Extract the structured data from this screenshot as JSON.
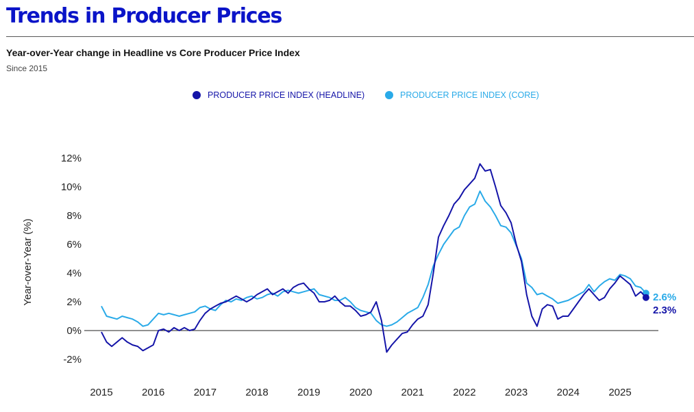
{
  "page": {
    "title": "Trends in Producer Prices",
    "subtitle": "Year-over-Year change in Headline vs Core Producer Price Index",
    "note": "Since 2015"
  },
  "colors": {
    "title": "#0a14c8",
    "headline": "#1414a8",
    "core": "#29aae8"
  },
  "chart_data": {
    "type": "line",
    "ylabel": "Year-over-Year (%)",
    "ylim": [
      -2,
      12
    ],
    "yticks": [
      {
        "v": -2,
        "label": "-2%"
      },
      {
        "v": 0,
        "label": "0%"
      },
      {
        "v": 2,
        "label": "2%"
      },
      {
        "v": 4,
        "label": "4%"
      },
      {
        "v": 6,
        "label": "6%"
      },
      {
        "v": 8,
        "label": "8%"
      },
      {
        "v": 10,
        "label": "10%"
      },
      {
        "v": 12,
        "label": "12%"
      }
    ],
    "xlim": [
      2015.0,
      2025.8
    ],
    "xticks": [
      {
        "v": 2015,
        "label": "2015"
      },
      {
        "v": 2016,
        "label": "2016"
      },
      {
        "v": 2017,
        "label": "2017"
      },
      {
        "v": 2018,
        "label": "2018"
      },
      {
        "v": 2019,
        "label": "2019"
      },
      {
        "v": 2020,
        "label": "2020"
      },
      {
        "v": 2021,
        "label": "2021"
      },
      {
        "v": 2022,
        "label": "2022"
      },
      {
        "v": 2023,
        "label": "2023"
      },
      {
        "v": 2024,
        "label": "2024"
      },
      {
        "v": 2025,
        "label": "2025"
      }
    ],
    "series": [
      {
        "name": "PRODUCER PRICE INDEX (HEADLINE)",
        "color": "#1414a8",
        "end_label": "2.3%",
        "values": [
          [
            2015.0,
            -0.1
          ],
          [
            2015.1,
            -0.8
          ],
          [
            2015.2,
            -1.1
          ],
          [
            2015.3,
            -0.8
          ],
          [
            2015.4,
            -0.5
          ],
          [
            2015.5,
            -0.8
          ],
          [
            2015.6,
            -1.0
          ],
          [
            2015.7,
            -1.1
          ],
          [
            2015.8,
            -1.4
          ],
          [
            2015.9,
            -1.2
          ],
          [
            2016.0,
            -1.0
          ],
          [
            2016.1,
            0.0
          ],
          [
            2016.2,
            0.1
          ],
          [
            2016.3,
            -0.1
          ],
          [
            2016.4,
            0.2
          ],
          [
            2016.5,
            0.0
          ],
          [
            2016.6,
            0.2
          ],
          [
            2016.7,
            0.0
          ],
          [
            2016.8,
            0.1
          ],
          [
            2016.9,
            0.7
          ],
          [
            2017.0,
            1.2
          ],
          [
            2017.1,
            1.5
          ],
          [
            2017.2,
            1.7
          ],
          [
            2017.3,
            1.9
          ],
          [
            2017.4,
            2.0
          ],
          [
            2017.5,
            2.2
          ],
          [
            2017.6,
            2.4
          ],
          [
            2017.7,
            2.2
          ],
          [
            2017.8,
            2.0
          ],
          [
            2017.9,
            2.2
          ],
          [
            2018.0,
            2.5
          ],
          [
            2018.1,
            2.7
          ],
          [
            2018.2,
            2.9
          ],
          [
            2018.3,
            2.5
          ],
          [
            2018.4,
            2.7
          ],
          [
            2018.5,
            2.9
          ],
          [
            2018.6,
            2.6
          ],
          [
            2018.7,
            3.0
          ],
          [
            2018.8,
            3.2
          ],
          [
            2018.9,
            3.3
          ],
          [
            2019.0,
            2.9
          ],
          [
            2019.1,
            2.6
          ],
          [
            2019.2,
            2.0
          ],
          [
            2019.3,
            2.0
          ],
          [
            2019.4,
            2.1
          ],
          [
            2019.5,
            2.4
          ],
          [
            2019.6,
            2.0
          ],
          [
            2019.7,
            1.7
          ],
          [
            2019.8,
            1.7
          ],
          [
            2019.9,
            1.4
          ],
          [
            2020.0,
            1.0
          ],
          [
            2020.1,
            1.1
          ],
          [
            2020.2,
            1.3
          ],
          [
            2020.3,
            2.0
          ],
          [
            2020.4,
            0.7
          ],
          [
            2020.5,
            -1.5
          ],
          [
            2020.6,
            -1.0
          ],
          [
            2020.7,
            -0.6
          ],
          [
            2020.8,
            -0.2
          ],
          [
            2020.9,
            -0.1
          ],
          [
            2021.0,
            0.4
          ],
          [
            2021.1,
            0.8
          ],
          [
            2021.2,
            1.0
          ],
          [
            2021.3,
            1.8
          ],
          [
            2021.4,
            4.0
          ],
          [
            2021.5,
            6.5
          ],
          [
            2021.6,
            7.3
          ],
          [
            2021.7,
            8.0
          ],
          [
            2021.8,
            8.8
          ],
          [
            2021.9,
            9.2
          ],
          [
            2022.0,
            9.8
          ],
          [
            2022.1,
            10.2
          ],
          [
            2022.2,
            10.6
          ],
          [
            2022.3,
            11.6
          ],
          [
            2022.4,
            11.1
          ],
          [
            2022.5,
            11.2
          ],
          [
            2022.6,
            10.0
          ],
          [
            2022.7,
            8.7
          ],
          [
            2022.8,
            8.2
          ],
          [
            2022.9,
            7.5
          ],
          [
            2023.0,
            6.0
          ],
          [
            2023.1,
            4.8
          ],
          [
            2023.2,
            2.5
          ],
          [
            2023.3,
            1.0
          ],
          [
            2023.4,
            0.3
          ],
          [
            2023.5,
            1.5
          ],
          [
            2023.6,
            1.8
          ],
          [
            2023.7,
            1.7
          ],
          [
            2023.8,
            0.8
          ],
          [
            2023.9,
            1.0
          ],
          [
            2024.0,
            1.0
          ],
          [
            2024.1,
            1.5
          ],
          [
            2024.2,
            2.0
          ],
          [
            2024.3,
            2.5
          ],
          [
            2024.4,
            2.9
          ],
          [
            2024.5,
            2.5
          ],
          [
            2024.6,
            2.1
          ],
          [
            2024.7,
            2.3
          ],
          [
            2024.8,
            2.9
          ],
          [
            2024.9,
            3.3
          ],
          [
            2025.0,
            3.8
          ],
          [
            2025.1,
            3.5
          ],
          [
            2025.2,
            3.2
          ],
          [
            2025.3,
            2.4
          ],
          [
            2025.4,
            2.7
          ],
          [
            2025.5,
            2.3
          ]
        ]
      },
      {
        "name": "PRODUCER PRICE INDEX (CORE)",
        "color": "#29aae8",
        "end_label": "2.6%",
        "values": [
          [
            2015.0,
            1.7
          ],
          [
            2015.1,
            1.0
          ],
          [
            2015.2,
            0.9
          ],
          [
            2015.3,
            0.8
          ],
          [
            2015.4,
            1.0
          ],
          [
            2015.5,
            0.9
          ],
          [
            2015.6,
            0.8
          ],
          [
            2015.7,
            0.6
          ],
          [
            2015.8,
            0.3
          ],
          [
            2015.9,
            0.4
          ],
          [
            2016.0,
            0.8
          ],
          [
            2016.1,
            1.2
          ],
          [
            2016.2,
            1.1
          ],
          [
            2016.3,
            1.2
          ],
          [
            2016.4,
            1.1
          ],
          [
            2016.5,
            1.0
          ],
          [
            2016.6,
            1.1
          ],
          [
            2016.7,
            1.2
          ],
          [
            2016.8,
            1.3
          ],
          [
            2016.9,
            1.6
          ],
          [
            2017.0,
            1.7
          ],
          [
            2017.1,
            1.5
          ],
          [
            2017.2,
            1.4
          ],
          [
            2017.3,
            1.8
          ],
          [
            2017.4,
            2.1
          ],
          [
            2017.5,
            2.0
          ],
          [
            2017.6,
            2.2
          ],
          [
            2017.7,
            2.1
          ],
          [
            2017.8,
            2.3
          ],
          [
            2017.9,
            2.4
          ],
          [
            2018.0,
            2.2
          ],
          [
            2018.1,
            2.3
          ],
          [
            2018.2,
            2.5
          ],
          [
            2018.3,
            2.6
          ],
          [
            2018.4,
            2.4
          ],
          [
            2018.5,
            2.7
          ],
          [
            2018.6,
            2.8
          ],
          [
            2018.7,
            2.7
          ],
          [
            2018.8,
            2.6
          ],
          [
            2018.9,
            2.7
          ],
          [
            2019.0,
            2.8
          ],
          [
            2019.1,
            2.9
          ],
          [
            2019.2,
            2.5
          ],
          [
            2019.3,
            2.4
          ],
          [
            2019.4,
            2.3
          ],
          [
            2019.5,
            2.1
          ],
          [
            2019.6,
            2.1
          ],
          [
            2019.7,
            2.3
          ],
          [
            2019.8,
            2.0
          ],
          [
            2019.9,
            1.6
          ],
          [
            2020.0,
            1.4
          ],
          [
            2020.1,
            1.3
          ],
          [
            2020.2,
            1.2
          ],
          [
            2020.3,
            0.7
          ],
          [
            2020.4,
            0.4
          ],
          [
            2020.5,
            0.3
          ],
          [
            2020.6,
            0.4
          ],
          [
            2020.7,
            0.6
          ],
          [
            2020.8,
            0.9
          ],
          [
            2020.9,
            1.2
          ],
          [
            2021.0,
            1.4
          ],
          [
            2021.1,
            1.6
          ],
          [
            2021.2,
            2.3
          ],
          [
            2021.3,
            3.2
          ],
          [
            2021.4,
            4.5
          ],
          [
            2021.5,
            5.3
          ],
          [
            2021.6,
            6.0
          ],
          [
            2021.7,
            6.5
          ],
          [
            2021.8,
            7.0
          ],
          [
            2021.9,
            7.2
          ],
          [
            2022.0,
            8.0
          ],
          [
            2022.1,
            8.6
          ],
          [
            2022.2,
            8.8
          ],
          [
            2022.3,
            9.7
          ],
          [
            2022.4,
            9.0
          ],
          [
            2022.5,
            8.6
          ],
          [
            2022.6,
            8.0
          ],
          [
            2022.7,
            7.3
          ],
          [
            2022.8,
            7.2
          ],
          [
            2022.9,
            6.8
          ],
          [
            2023.0,
            5.9
          ],
          [
            2023.1,
            5.0
          ],
          [
            2023.2,
            3.3
          ],
          [
            2023.3,
            3.0
          ],
          [
            2023.4,
            2.5
          ],
          [
            2023.5,
            2.6
          ],
          [
            2023.6,
            2.4
          ],
          [
            2023.7,
            2.2
          ],
          [
            2023.8,
            1.9
          ],
          [
            2023.9,
            2.0
          ],
          [
            2024.0,
            2.1
          ],
          [
            2024.1,
            2.3
          ],
          [
            2024.2,
            2.5
          ],
          [
            2024.3,
            2.7
          ],
          [
            2024.4,
            3.2
          ],
          [
            2024.5,
            2.7
          ],
          [
            2024.6,
            3.1
          ],
          [
            2024.7,
            3.4
          ],
          [
            2024.8,
            3.6
          ],
          [
            2024.9,
            3.5
          ],
          [
            2025.0,
            3.9
          ],
          [
            2025.1,
            3.8
          ],
          [
            2025.2,
            3.6
          ],
          [
            2025.3,
            3.1
          ],
          [
            2025.4,
            3.0
          ],
          [
            2025.5,
            2.6
          ]
        ]
      }
    ]
  }
}
